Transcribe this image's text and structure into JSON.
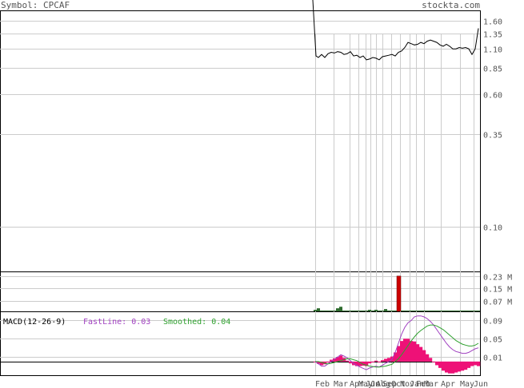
{
  "header": {
    "symbol_label": "Symbol: CPCAF",
    "site": "stockta.com"
  },
  "chart_data": [
    {
      "type": "line",
      "title": "Symbol: CPCAF",
      "y_scale": "log",
      "y_ticks": [
        "1.60",
        "1.35",
        "1.10",
        "0.85",
        "0.60",
        "0.35",
        "0.10"
      ],
      "x_ticks": [
        "Feb",
        "Mar",
        "Apr",
        "May",
        "Jun",
        "Jul",
        "Aug",
        "Sep",
        "Oct",
        "Nov",
        "Jan",
        "Feb",
        "Mar",
        "Apr",
        "May",
        "Jun"
      ],
      "series": [
        {
          "x": [
            0,
            1,
            2,
            3,
            4,
            5,
            6,
            7,
            8,
            9,
            10,
            11,
            12,
            13,
            14,
            15,
            16,
            17,
            18,
            19,
            20,
            21,
            22,
            23,
            24,
            25,
            26,
            27,
            28,
            29,
            30,
            31,
            32,
            33,
            34,
            35,
            36,
            37,
            38,
            39,
            40,
            41,
            42,
            43,
            44,
            45,
            46,
            47,
            48,
            49,
            50,
            51
          ],
          "values": [
            1.0,
            0.98,
            1.02,
            0.98,
            1.03,
            1.05,
            1.04,
            1.06,
            1.05,
            1.02,
            1.03,
            1.06,
            1.0,
            1.01,
            0.98,
            1.0,
            0.95,
            0.96,
            0.98,
            0.97,
            0.95,
            0.99,
            1.0,
            1.01,
            1.02,
            1.0,
            1.05,
            1.07,
            1.12,
            1.2,
            1.18,
            1.16,
            1.17,
            1.2,
            1.18,
            1.22,
            1.24,
            1.22,
            1.2,
            1.16,
            1.14,
            1.17,
            1.14,
            1.1,
            1.1,
            1.12,
            1.11,
            1.12,
            1.1,
            1.02,
            1.1,
            1.45
          ]
        }
      ]
    },
    {
      "type": "bar",
      "title": "Volume",
      "y_ticks": [
        "0.23 M",
        "0.15 M",
        "0.07 M"
      ],
      "ylim": [
        0,
        0.26
      ],
      "series": [
        {
          "color": "#2e6b2e",
          "values": [
            0.01,
            0.02,
            0.005,
            0.005,
            0.005,
            0.005,
            0.005,
            0.02,
            0.03,
            0.005,
            0.005,
            0.005,
            0.005,
            0.005,
            0.005,
            0.005,
            0.005,
            0.01,
            0.005,
            0.01,
            0.005,
            0.005,
            0.015,
            0.005,
            0.005,
            0.005,
            0.005,
            0.005,
            0.005,
            0.005,
            0.005,
            0.005,
            0.005,
            0.005,
            0.005,
            0.005,
            0.005,
            0.005,
            0.005,
            0.005,
            0.005,
            0.005,
            0.005,
            0.005,
            0.005,
            0.005,
            0.005,
            0.005,
            0.005,
            0.005,
            0.005,
            0.005
          ]
        },
        {
          "color": "#cc0000",
          "index": 26,
          "value": 0.23
        }
      ]
    },
    {
      "type": "line",
      "title": "MACD(12-26-9)",
      "fast_label": "FastLine: 0.03",
      "smooth_label": "Smoothed: 0.04",
      "y_ticks": [
        "0.09",
        "0.05",
        "0.01"
      ],
      "ylim": [
        -0.03,
        0.11
      ],
      "series": [
        {
          "name": "FastLine",
          "color": "#a040c0",
          "values": [
            0,
            -0.005,
            -0.01,
            -0.01,
            -0.005,
            0,
            0.005,
            0.01,
            0.015,
            0.012,
            0.008,
            0.002,
            -0.004,
            -0.008,
            -0.012,
            -0.015,
            -0.018,
            -0.014,
            -0.012,
            -0.01,
            -0.012,
            -0.008,
            -0.004,
            0,
            0.005,
            0.02,
            0.04,
            0.06,
            0.075,
            0.085,
            0.09,
            0.098,
            0.1,
            0.1,
            0.098,
            0.094,
            0.088,
            0.08,
            0.07,
            0.06,
            0.05,
            0.04,
            0.032,
            0.026,
            0.022,
            0.02,
            0.018,
            0.018,
            0.02,
            0.024,
            0.028,
            0.03
          ]
        },
        {
          "name": "Smoothed",
          "color": "#2ea02e",
          "values": [
            0,
            0,
            -0.002,
            -0.004,
            -0.005,
            -0.004,
            -0.002,
            0,
            0.002,
            0.004,
            0.006,
            0.006,
            0.004,
            0.002,
            -0.002,
            -0.006,
            -0.008,
            -0.01,
            -0.011,
            -0.012,
            -0.012,
            -0.011,
            -0.01,
            -0.008,
            -0.006,
            0,
            0.006,
            0.015,
            0.025,
            0.035,
            0.045,
            0.054,
            0.062,
            0.068,
            0.073,
            0.078,
            0.08,
            0.08,
            0.078,
            0.074,
            0.07,
            0.064,
            0.058,
            0.052,
            0.046,
            0.042,
            0.038,
            0.036,
            0.034,
            0.034,
            0.036,
            0.04
          ]
        },
        {
          "name": "Histogram",
          "color": "#ee1177",
          "values": [
            0,
            -0.005,
            -0.008,
            -0.006,
            0,
            0.004,
            0.007,
            0.01,
            0.013,
            0.008,
            0.002,
            -0.004,
            -0.008,
            -0.01,
            -0.01,
            -0.009,
            -0.01,
            -0.004,
            -0.001,
            0.002,
            0,
            0.003,
            0.006,
            0.008,
            0.011,
            0.02,
            0.034,
            0.045,
            0.05,
            0.05,
            0.045,
            0.044,
            0.038,
            0.032,
            0.025,
            0.016,
            0.008,
            0,
            -0.008,
            -0.014,
            -0.02,
            -0.024,
            -0.026,
            -0.026,
            -0.024,
            -0.022,
            -0.02,
            -0.018,
            -0.014,
            -0.01,
            -0.008,
            -0.01
          ]
        }
      ]
    }
  ]
}
